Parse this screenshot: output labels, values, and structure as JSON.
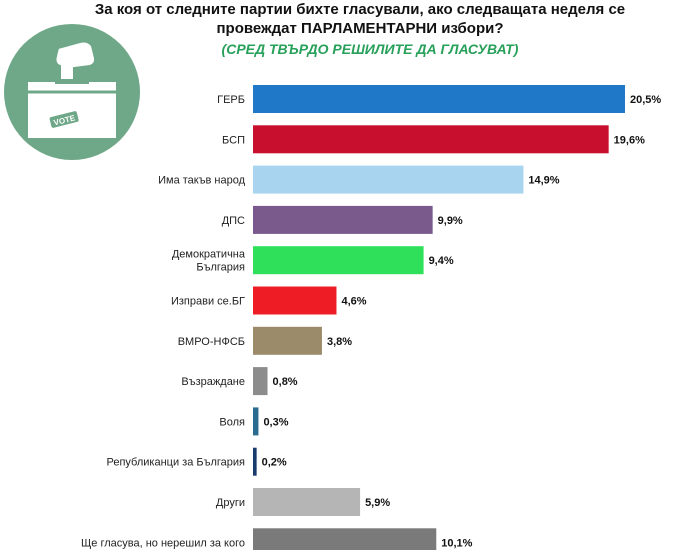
{
  "header": {
    "title_line1": "За коя от следните партии бихте гласували, ако следващата неделя се",
    "title_line2": "провеждат ПАРЛАМЕНТАРНИ избори?",
    "subtitle": "(СРЕД ТВЪРДО РЕШИЛИТЕ ДА ГЛАСУВАТ)"
  },
  "logo": {
    "icon": "ballot-box-icon",
    "text": "VOTE",
    "colors": {
      "circle": "#6fa888",
      "box": "#ffffff"
    }
  },
  "chart_data": {
    "type": "bar",
    "orientation": "horizontal",
    "categories": [
      [
        "ГЕРБ"
      ],
      [
        "БСП"
      ],
      [
        "Има такъв народ"
      ],
      [
        "ДПС"
      ],
      [
        "Демократична",
        "България"
      ],
      [
        "Изправи се.БГ"
      ],
      [
        "ВМРО-НФСБ"
      ],
      [
        "Възраждане"
      ],
      [
        "Воля"
      ],
      [
        "Републиканци за България"
      ],
      [
        "Други"
      ],
      [
        "Ще гласува, но нерешил за кого"
      ]
    ],
    "values": [
      20.5,
      19.6,
      14.9,
      9.9,
      9.4,
      4.6,
      3.8,
      0.8,
      0.3,
      0.2,
      5.9,
      10.1
    ],
    "value_labels": [
      "20,5%",
      "19,6%",
      "14,9%",
      "9,9%",
      "9,4%",
      "4,6%",
      "3,8%",
      "0,8%",
      "0,3%",
      "0,2%",
      "5,9%",
      "10,1%"
    ],
    "colors": [
      "#1f78c8",
      "#c8102e",
      "#a8d4ef",
      "#7a5a8c",
      "#2ee05a",
      "#ee1c25",
      "#9b8b6a",
      "#8c8c8c",
      "#2a6b8f",
      "#1a3a6b",
      "#b5b5b5",
      "#7a7a7a"
    ],
    "xlim": [
      0,
      20.5
    ],
    "grid": false,
    "legend": "none"
  }
}
